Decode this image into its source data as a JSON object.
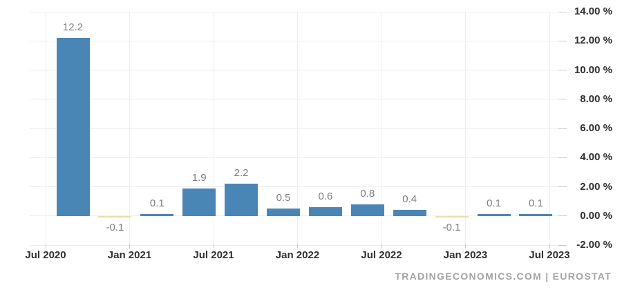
{
  "chart_data": {
    "type": "bar",
    "title": "",
    "xlabel": "",
    "ylabel": "",
    "categories": [
      "Oct 2020",
      "Jan 2021",
      "Apr 2021",
      "Jul 2021",
      "Oct 2021",
      "Jan 2022",
      "Apr 2022",
      "Jul 2022",
      "Oct 2022",
      "Jan 2023",
      "Apr 2023",
      "Jul 2023"
    ],
    "values": [
      12.2,
      -0.1,
      0.1,
      1.9,
      2.2,
      0.5,
      0.6,
      0.8,
      0.4,
      -0.1,
      0.1,
      0.1
    ],
    "value_labels": [
      "12.2",
      "-0.1",
      "0.1",
      "1.9",
      "2.2",
      "0.5",
      "0.6",
      "0.8",
      "0.4",
      "-0.1",
      "0.1",
      "0.1"
    ],
    "x_tick_labels": [
      "Jul 2020",
      "Jan 2021",
      "Jul 2021",
      "Jan 2022",
      "Jul 2022",
      "Jan 2023",
      "Jul 2023"
    ],
    "y_tick_labels": [
      "14.00 %",
      "12.00 %",
      "10.00 %",
      "8.00 %",
      "6.00 %",
      "4.00 %",
      "2.00 %",
      "0.00 %",
      "-2.00 %"
    ],
    "ylim": [
      -2,
      14
    ],
    "y_step": 2,
    "grid": "on",
    "legend": "none",
    "y_axis_side": "right",
    "colors": {
      "positive_bar": "#4a86b5",
      "negative_bar": "#eddcab",
      "value_label": "#7b7b7b",
      "axis_label": "#2f2f2f",
      "gridline": "#ededed",
      "tick": "#c9c9c9",
      "attribution": "#a3a3a3",
      "background": "#ffffff"
    }
  },
  "attribution": "TRADINGECONOMICS.COM | EUROSTAT"
}
